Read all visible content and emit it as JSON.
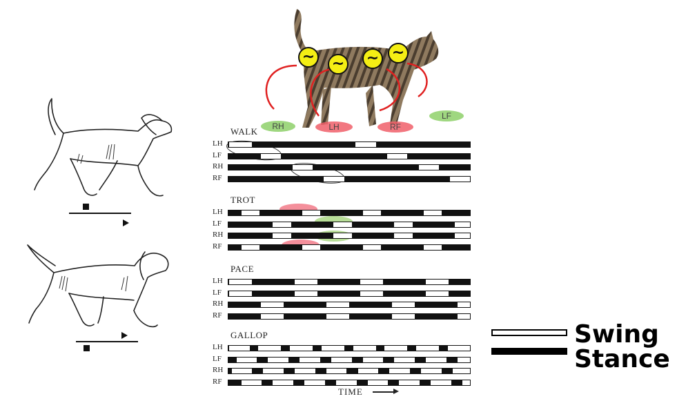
{
  "gaits": [
    {
      "name": "WALK",
      "rows": [
        {
          "leg": "LH",
          "swings": [
            [
              0.0,
              0.1
            ],
            [
              0.52,
              0.61
            ]
          ]
        },
        {
          "leg": "LF",
          "swings": [
            [
              0.13,
              0.22
            ],
            [
              0.65,
              0.74
            ]
          ]
        },
        {
          "leg": "RH",
          "swings": [
            [
              0.26,
              0.35
            ],
            [
              0.78,
              0.87
            ]
          ]
        },
        {
          "leg": "RF",
          "swings": [
            [
              0.39,
              0.48
            ],
            [
              0.91,
              1.0
            ]
          ]
        }
      ]
    },
    {
      "name": "TROT",
      "rows": [
        {
          "leg": "LH",
          "swings": [
            [
              0.05,
              0.13
            ],
            [
              0.3,
              0.38
            ],
            [
              0.55,
              0.63
            ],
            [
              0.8,
              0.88
            ]
          ]
        },
        {
          "leg": "LF",
          "swings": [
            [
              0.18,
              0.26
            ],
            [
              0.43,
              0.51
            ],
            [
              0.68,
              0.76
            ],
            [
              0.93,
              1.0
            ]
          ]
        },
        {
          "leg": "RH",
          "swings": [
            [
              0.18,
              0.26
            ],
            [
              0.43,
              0.51
            ],
            [
              0.68,
              0.76
            ],
            [
              0.93,
              1.0
            ]
          ]
        },
        {
          "leg": "RF",
          "swings": [
            [
              0.05,
              0.13
            ],
            [
              0.3,
              0.38
            ],
            [
              0.55,
              0.63
            ],
            [
              0.8,
              0.88
            ]
          ]
        }
      ]
    },
    {
      "name": "PACE",
      "rows": [
        {
          "leg": "LH",
          "swings": [
            [
              0.0,
              0.1
            ],
            [
              0.27,
              0.37
            ],
            [
              0.54,
              0.64
            ],
            [
              0.81,
              0.91
            ]
          ]
        },
        {
          "leg": "LF",
          "swings": [
            [
              0.0,
              0.1
            ],
            [
              0.27,
              0.37
            ],
            [
              0.54,
              0.64
            ],
            [
              0.81,
              0.91
            ]
          ]
        },
        {
          "leg": "RH",
          "swings": [
            [
              0.13,
              0.23
            ],
            [
              0.4,
              0.5
            ],
            [
              0.67,
              0.77
            ],
            [
              0.94,
              1.0
            ]
          ]
        },
        {
          "leg": "RF",
          "swings": [
            [
              0.13,
              0.23
            ],
            [
              0.4,
              0.5
            ],
            [
              0.67,
              0.77
            ],
            [
              0.94,
              1.0
            ]
          ]
        }
      ]
    },
    {
      "name": "GALLOP",
      "rows": [
        {
          "leg": "LH",
          "swings": [
            [
              0.0,
              0.09
            ],
            [
              0.12,
              0.22
            ],
            [
              0.25,
              0.35
            ],
            [
              0.38,
              0.48
            ],
            [
              0.51,
              0.61
            ],
            [
              0.64,
              0.74
            ],
            [
              0.77,
              0.87
            ],
            [
              0.9,
              1.0
            ]
          ]
        },
        {
          "leg": "LF",
          "swings": [
            [
              0.03,
              0.12
            ],
            [
              0.16,
              0.25
            ],
            [
              0.29,
              0.38
            ],
            [
              0.42,
              0.51
            ],
            [
              0.55,
              0.64
            ],
            [
              0.68,
              0.77
            ],
            [
              0.81,
              0.9
            ],
            [
              0.94,
              1.0
            ]
          ]
        },
        {
          "leg": "RH",
          "swings": [
            [
              0.01,
              0.1
            ],
            [
              0.14,
              0.23
            ],
            [
              0.27,
              0.36
            ],
            [
              0.4,
              0.49
            ],
            [
              0.53,
              0.62
            ],
            [
              0.66,
              0.75
            ],
            [
              0.79,
              0.88
            ],
            [
              0.92,
              1.0
            ]
          ]
        },
        {
          "leg": "RF",
          "swings": [
            [
              0.05,
              0.14
            ],
            [
              0.18,
              0.27
            ],
            [
              0.31,
              0.4
            ],
            [
              0.44,
              0.53
            ],
            [
              0.57,
              0.66
            ],
            [
              0.7,
              0.79
            ],
            [
              0.83,
              0.92
            ],
            [
              0.96,
              1.0
            ]
          ]
        }
      ]
    }
  ],
  "time_label": "TIME",
  "legend": {
    "swing": "Swing",
    "stance": "Stance"
  },
  "cat_feet": [
    {
      "label": "RH",
      "color": "#8fd16a"
    },
    {
      "label": "LH",
      "color": "#f0606a"
    },
    {
      "label": "RF",
      "color": "#f0606a"
    },
    {
      "label": "LF",
      "color": "#8fd16a"
    }
  ],
  "oscillator_symbol": "~",
  "colors": {
    "oscillator_fill": "#f4ee14",
    "arrow": "#e02020",
    "highlight_red": "#f06070",
    "highlight_green": "#9ad06c"
  }
}
